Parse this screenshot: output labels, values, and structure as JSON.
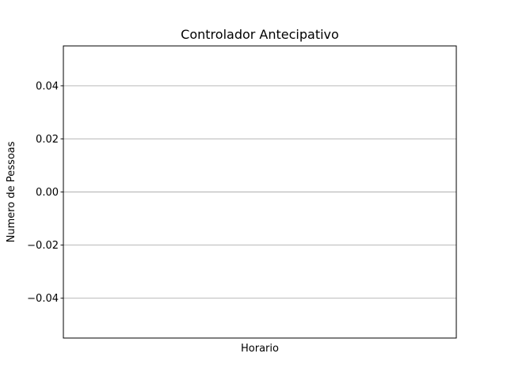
{
  "chart_data": {
    "type": "line",
    "title": "Controlador Antecipativo",
    "xlabel": "Horario",
    "ylabel": "Numero de Pessoas",
    "x": [],
    "series": [],
    "ylim": [
      -0.055,
      0.055
    ],
    "yticks": [
      0.04,
      0.02,
      0.0,
      -0.02,
      -0.04
    ],
    "ytick_labels": [
      "0.04",
      "0.02",
      "0.00",
      "−0.02",
      "−0.04"
    ],
    "grid": "horizontal",
    "colors": {
      "grid": "#b0b0b0",
      "frame": "#000000",
      "text": "#000000",
      "background": "#ffffff"
    }
  }
}
